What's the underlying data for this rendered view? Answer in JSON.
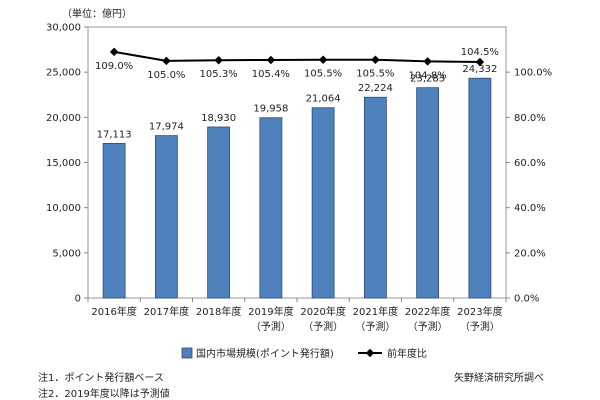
{
  "chart_data": {
    "type": "bar",
    "unit_label": "（単位：億円）",
    "categories": [
      [
        "2016年度"
      ],
      [
        "2017年度"
      ],
      [
        "2018年度"
      ],
      [
        "2019年度",
        "（予測）"
      ],
      [
        "2020年度",
        "（予測）"
      ],
      [
        "2021年度",
        "（予測）"
      ],
      [
        "2022年度",
        "（予測）"
      ],
      [
        "2023年度",
        "（予測）"
      ]
    ],
    "series": [
      {
        "name": "国内市場規模(ポイント発行額)",
        "kind": "bar",
        "axis": "left",
        "color": "#4f81bd",
        "values": [
          17113,
          17974,
          18930,
          19958,
          21064,
          22224,
          23283,
          24332
        ],
        "labels": [
          "17,113",
          "17,974",
          "18,930",
          "19,958",
          "21,064",
          "22,224",
          "23,283",
          "24,332"
        ]
      },
      {
        "name": "前年度比",
        "kind": "line",
        "axis": "right",
        "color": "#000000",
        "values": [
          109.0,
          105.0,
          105.3,
          105.4,
          105.5,
          105.5,
          104.8,
          104.5
        ],
        "labels": [
          "109.0%",
          "105.0%",
          "105.3%",
          "105.4%",
          "105.5%",
          "105.5%",
          "104.8%",
          "104.5%"
        ]
      }
    ],
    "left_axis": {
      "ylim": [
        0,
        30000
      ],
      "ticks": [
        0,
        5000,
        10000,
        15000,
        20000,
        25000,
        30000
      ],
      "tick_labels": [
        "0",
        "5,000",
        "10,000",
        "15,000",
        "20,000",
        "25,000",
        "30,000"
      ]
    },
    "right_axis": {
      "ylim": [
        0,
        120
      ],
      "ticks": [
        0,
        20,
        40,
        60,
        80,
        100
      ],
      "tick_labels": [
        "0.0%",
        "20.0%",
        "40.0%",
        "60.0%",
        "80.0%",
        "100.0%"
      ]
    },
    "grid": false,
    "legend_position": "bottom"
  },
  "notes": [
    "注1．ポイント発行額ベース",
    "注2．2019年度以降は予測値"
  ],
  "source": "矢野経済研究所調べ"
}
